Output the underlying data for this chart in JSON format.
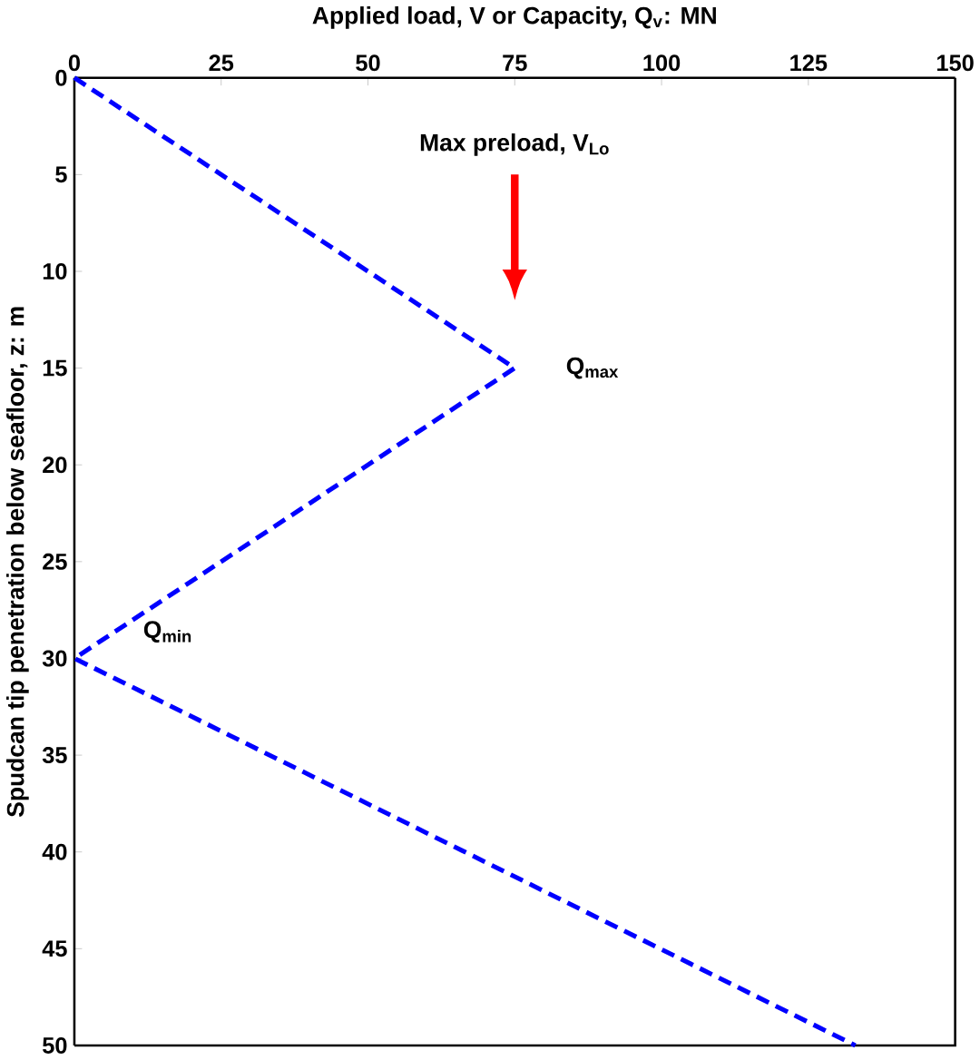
{
  "chart_data": {
    "type": "line",
    "xlabel": "Applied load, V or Capacity, Q$_{v}$: MN",
    "ylabel": "Spudcan tip penetration below seafloor, z: m",
    "x": [
      0,
      75,
      0,
      133
    ],
    "series": [
      {
        "color": "#0000ff",
        "values": [
          0,
          15,
          30,
          50
        ]
      }
    ],
    "xlim": [
      0,
      150
    ],
    "xticks": [
      0,
      25,
      50,
      75,
      100,
      125,
      150
    ],
    "ylim": [
      50,
      0
    ],
    "yticks": [
      0,
      5,
      10,
      15,
      20,
      25,
      30,
      35,
      40,
      45,
      50
    ],
    "line_style": "dashed",
    "marker": "none",
    "grid": false,
    "annotations": [
      "Max preload, V$_{Lo}$",
      {
        "text": "Q$_{max}$",
        "x": 75,
        "y": 15
      },
      {
        "text": "Q$_{min}$",
        "x": 0,
        "y": 30
      }
    ]
  }
}
